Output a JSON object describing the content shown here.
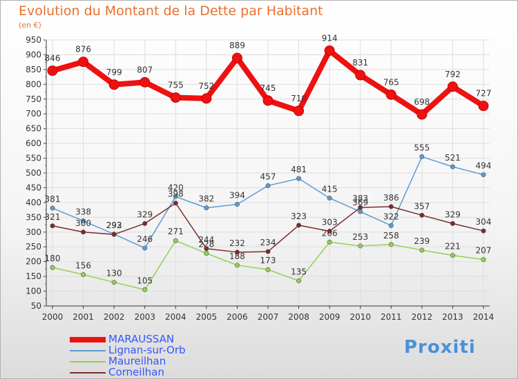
{
  "title": "Evolution du Montant de la Dette par Habitant",
  "unit_label": "(en €)",
  "logo_text": "Proxiti",
  "colors": {
    "title": "#e8702e",
    "legend_text": "#3355ff",
    "grid": "#dddddd",
    "axis": "#333333"
  },
  "chart_data": {
    "type": "line",
    "x": [
      "2000",
      "2001",
      "2002",
      "2003",
      "2004",
      "2005",
      "2006",
      "2007",
      "2008",
      "2009",
      "2010",
      "2011",
      "2012",
      "2013",
      "2014"
    ],
    "y_ticks": [
      50,
      100,
      150,
      200,
      250,
      300,
      350,
      400,
      450,
      500,
      550,
      600,
      650,
      700,
      750,
      800,
      850,
      900,
      950
    ],
    "ylim": [
      50,
      950
    ],
    "grid": true,
    "legend_position": "bottom-left",
    "series": [
      {
        "name": "MARAUSSAN",
        "color": "#ee1111",
        "values": [
          846,
          876,
          799,
          807,
          755,
          752,
          889,
          745,
          710,
          914,
          831,
          765,
          698,
          792,
          727
        ],
        "labels": [
          "846",
          "876",
          "799",
          "807",
          "755",
          "752",
          "889",
          "745",
          "710",
          "914",
          "831",
          "765",
          "698",
          "792",
          "727"
        ]
      },
      {
        "name": "Lignan-sur-Orb",
        "color": "#5b9bd5",
        "values": [
          381,
          338,
          293,
          246,
          420,
          382,
          394,
          457,
          481,
          415,
          369,
          322,
          555,
          521,
          494
        ],
        "labels": [
          "381",
          "338",
          "293",
          "246",
          "420",
          "382",
          "394",
          "457",
          "481",
          "415",
          "369",
          "322",
          "555",
          "521",
          "494"
        ]
      },
      {
        "name": "Maureilhan",
        "color": "#92d050",
        "values": [
          180,
          156,
          130,
          105,
          271,
          228,
          188,
          173,
          135,
          266,
          253,
          258,
          239,
          221,
          207
        ],
        "labels": [
          "180",
          "156",
          "130",
          "105",
          "271",
          "228",
          "188",
          "173",
          "135",
          "266",
          "253",
          "258",
          "239",
          "221",
          "207"
        ]
      },
      {
        "name": "Corneilhan",
        "color": "#7b2a2a",
        "values": [
          321,
          300,
          292,
          329,
          398,
          244,
          232,
          234,
          323,
          303,
          383,
          386,
          357,
          329,
          304
        ],
        "labels": [
          "321",
          "300",
          "292",
          "329",
          "398",
          "244",
          "232",
          "234",
          "323",
          "303",
          "383",
          "386",
          "357",
          "329",
          "304"
        ]
      }
    ]
  }
}
